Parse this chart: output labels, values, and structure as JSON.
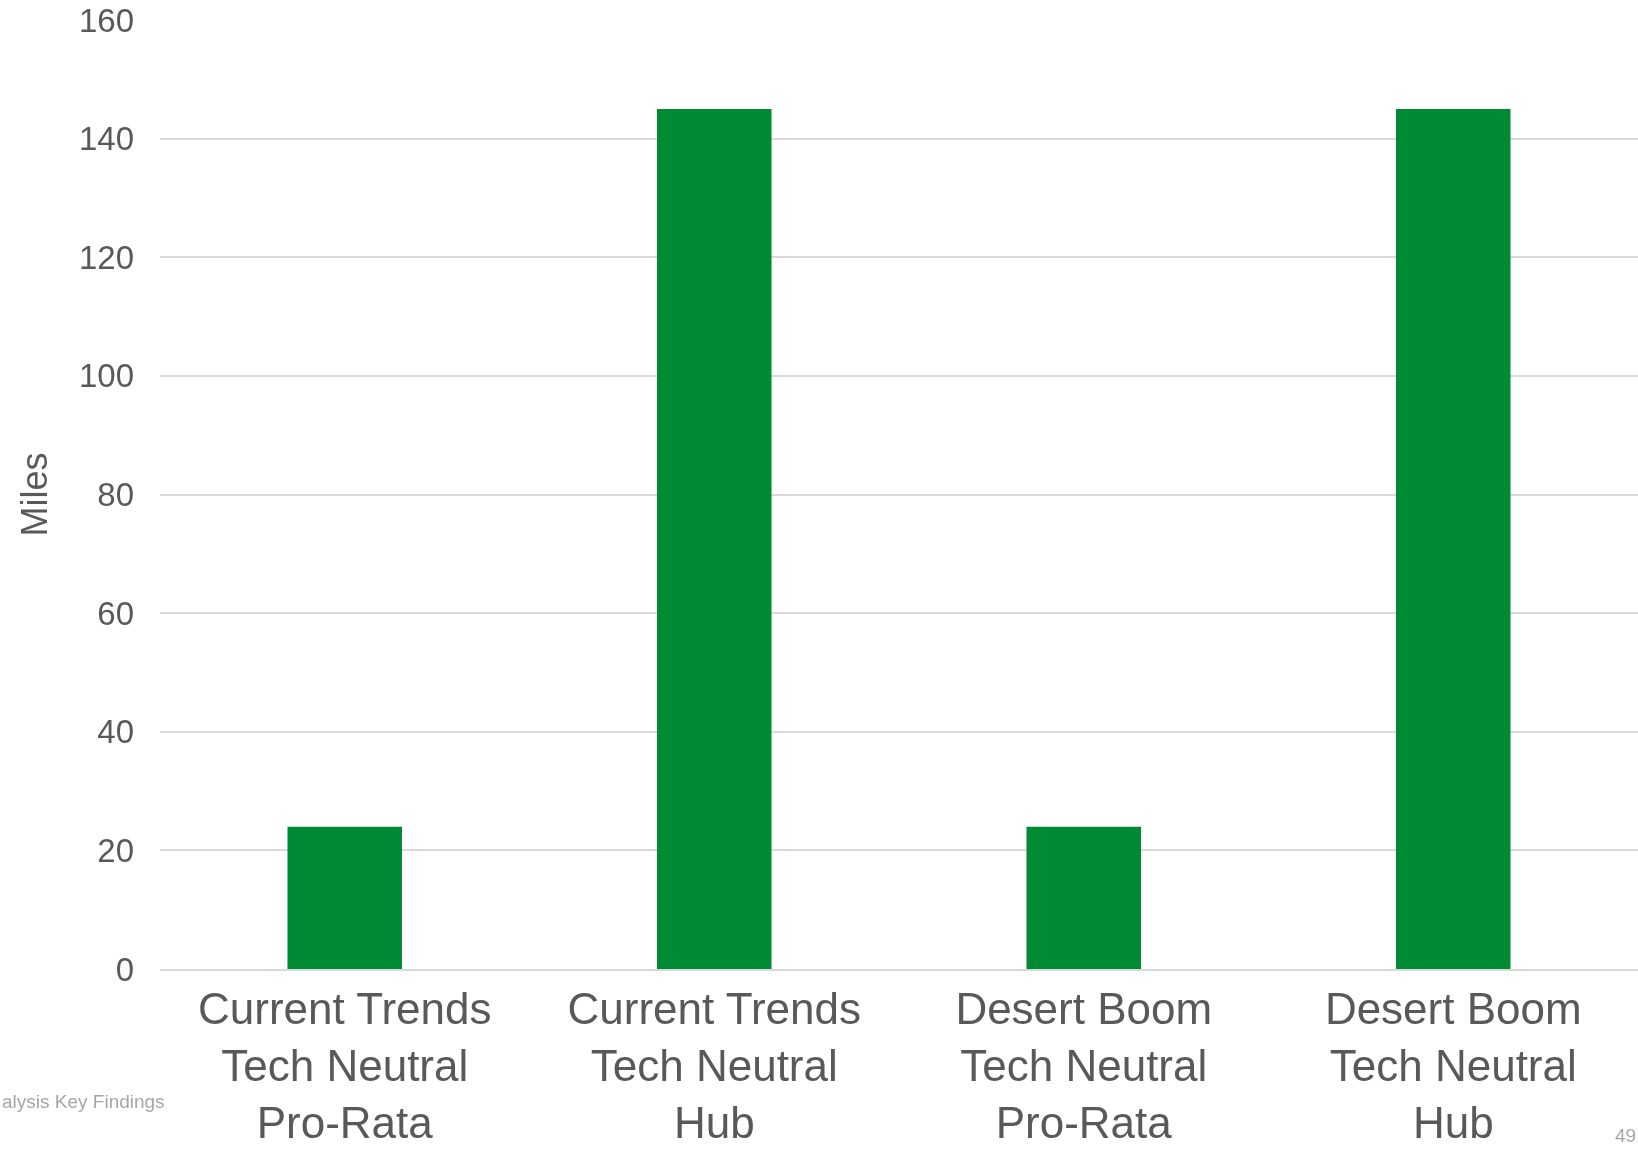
{
  "chart_data": {
    "type": "bar",
    "ylabel": "Miles",
    "categories": [
      "Current Trends\nTech Neutral\nPro-Rata",
      "Current Trends\nTech Neutral\nHub",
      "Desert Boom\nTech Neutral\nPro-Rata",
      "Desert Boom\nTech Neutral\nHub"
    ],
    "values": [
      24,
      145,
      24,
      145
    ],
    "color": "#008a34",
    "ylim": [
      0,
      160
    ],
    "yticks": [
      0,
      20,
      40,
      60,
      80,
      100,
      120,
      140,
      160
    ],
    "grid": "y",
    "annotations": [
      "alysis Key Findings",
      "49"
    ]
  }
}
